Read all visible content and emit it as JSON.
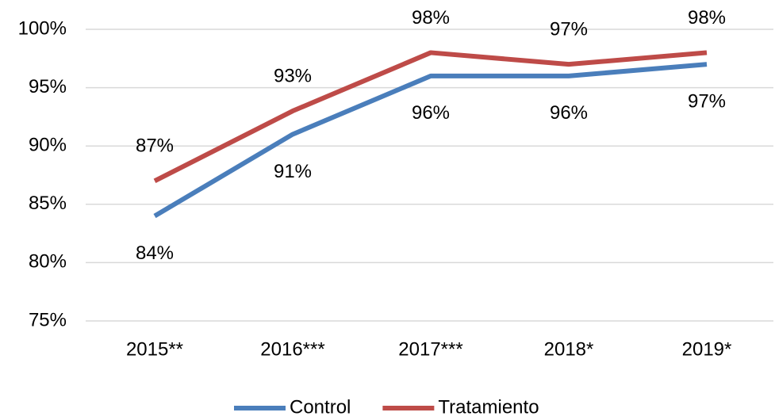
{
  "chart_data": {
    "type": "line",
    "categories": [
      "2015**",
      "2016***",
      "2017***",
      "2018*",
      "2019*"
    ],
    "series": [
      {
        "name": "Control",
        "color": "#4a7ebb",
        "values": [
          84,
          91,
          96,
          96,
          97
        ],
        "value_labels": [
          "84%",
          "91%",
          "96%",
          "96%",
          "97%"
        ]
      },
      {
        "name": "Tratamiento",
        "color": "#be4b48",
        "values": [
          87,
          93,
          98,
          97,
          98
        ],
        "value_labels": [
          "87%",
          "93%",
          "98%",
          "97%",
          "98%"
        ]
      }
    ],
    "ylim": [
      75,
      100
    ],
    "yticks": [
      {
        "value": 75,
        "label": "75%"
      },
      {
        "value": 80,
        "label": "80%"
      },
      {
        "value": 85,
        "label": "85%"
      },
      {
        "value": 90,
        "label": "90%"
      },
      {
        "value": 95,
        "label": "95%"
      },
      {
        "value": 100,
        "label": "100%"
      }
    ],
    "grid": true,
    "legend": "bottom"
  }
}
